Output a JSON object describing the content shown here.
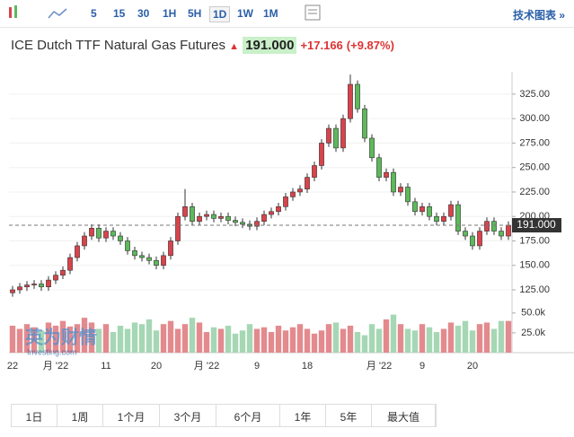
{
  "toolbar": {
    "intervals": [
      "5",
      "15",
      "30",
      "1H",
      "5H",
      "1D",
      "1W",
      "1M"
    ],
    "active": "1D",
    "link": "技术图表 »"
  },
  "header": {
    "title": "ICE Dutch TTF Natural Gas Futures",
    "price": "191.000",
    "change": "+17.166",
    "change_pct": "(+9.87%)"
  },
  "watermark": {
    "brand": "英为财情",
    "site": "Investing.com"
  },
  "ranges": [
    "1日",
    "1周",
    "1个月",
    "3个月",
    "6个月",
    "1年",
    "5年",
    "最大值"
  ],
  "chart_data": {
    "type": "candlestick",
    "categories": [
      "22",
      null,
      null,
      null,
      null,
      null,
      "月 '22",
      null,
      null,
      null,
      null,
      null,
      null,
      "11",
      null,
      null,
      null,
      null,
      null,
      null,
      "20",
      null,
      null,
      null,
      null,
      null,
      null,
      "月 '22",
      null,
      null,
      null,
      null,
      null,
      null,
      "9",
      null,
      null,
      null,
      null,
      null,
      null,
      "18",
      null,
      null,
      null,
      null,
      null,
      null,
      null,
      null,
      null,
      "月 '22",
      null,
      null,
      null,
      null,
      null,
      "9",
      null,
      null,
      null,
      null,
      null,
      null,
      "20",
      null,
      null,
      null,
      null,
      null
    ],
    "open": [
      122,
      125,
      128,
      130,
      131,
      128,
      135,
      140,
      145,
      158,
      170,
      180,
      188,
      178,
      185,
      180,
      175,
      165,
      160,
      158,
      155,
      150,
      160,
      175,
      200,
      210,
      195,
      200,
      202,
      198,
      200,
      196,
      194,
      192,
      190,
      195,
      202,
      205,
      210,
      220,
      225,
      228,
      240,
      252,
      275,
      290,
      270,
      300,
      335,
      310,
      280,
      260,
      240,
      245,
      225,
      230,
      215,
      205,
      210,
      200,
      195,
      200,
      212,
      185,
      180,
      170,
      185,
      195,
      185,
      180
    ],
    "high": [
      129,
      132,
      134,
      135,
      135,
      139,
      144,
      149,
      162,
      174,
      184,
      192,
      192,
      189,
      189,
      184,
      179,
      169,
      164,
      162,
      159,
      164,
      179,
      204,
      228,
      214,
      204,
      206,
      206,
      204,
      204,
      200,
      198,
      196,
      199,
      206,
      209,
      214,
      224,
      229,
      232,
      244,
      256,
      279,
      294,
      294,
      304,
      345,
      339,
      314,
      284,
      264,
      249,
      249,
      234,
      234,
      219,
      214,
      214,
      204,
      204,
      216,
      216,
      189,
      184,
      189,
      199,
      199,
      189,
      195
    ],
    "low": [
      118,
      121,
      124,
      126,
      124,
      124,
      131,
      136,
      141,
      154,
      166,
      176,
      174,
      174,
      176,
      171,
      161,
      156,
      154,
      151,
      146,
      146,
      156,
      171,
      196,
      191,
      191,
      196,
      194,
      194,
      192,
      190,
      188,
      186,
      186,
      191,
      198,
      201,
      206,
      216,
      221,
      224,
      236,
      248,
      271,
      266,
      266,
      296,
      306,
      276,
      256,
      236,
      236,
      221,
      221,
      211,
      201,
      201,
      196,
      191,
      191,
      196,
      181,
      176,
      166,
      166,
      181,
      181,
      176,
      176
    ],
    "close": [
      125,
      128,
      130,
      131,
      128,
      135,
      140,
      145,
      158,
      170,
      180,
      188,
      178,
      185,
      180,
      175,
      165,
      160,
      158,
      155,
      150,
      160,
      175,
      200,
      210,
      195,
      200,
      202,
      198,
      200,
      196,
      194,
      192,
      190,
      195,
      202,
      205,
      210,
      220,
      225,
      228,
      240,
      252,
      275,
      290,
      270,
      300,
      335,
      310,
      280,
      260,
      240,
      245,
      225,
      230,
      215,
      205,
      210,
      200,
      195,
      200,
      212,
      185,
      180,
      170,
      185,
      195,
      185,
      180,
      191
    ],
    "volume": [
      34,
      30,
      36,
      32,
      28,
      38,
      34,
      40,
      33,
      36,
      44,
      38,
      30,
      36,
      26,
      34,
      30,
      38,
      36,
      42,
      28,
      36,
      40,
      30,
      36,
      44,
      38,
      26,
      32,
      30,
      34,
      24,
      28,
      36,
      30,
      32,
      26,
      34,
      28,
      32,
      36,
      30,
      24,
      28,
      36,
      38,
      30,
      34,
      26,
      22,
      36,
      30,
      42,
      48,
      36,
      30,
      28,
      36,
      32,
      26,
      30,
      38,
      34,
      40,
      28,
      36,
      38,
      30,
      40,
      40
    ],
    "up_color": "#d9434b",
    "down_color": "#5db95b",
    "up_volume_color": "#e38a8e",
    "down_volume_color": "#a6d7b4",
    "ylim": [
      114,
      346
    ],
    "yticks": [
      {
        "value": 125,
        "label": "125.00"
      },
      {
        "value": 150,
        "label": "150.00"
      },
      {
        "value": 175,
        "label": "175.00"
      },
      {
        "value": 200,
        "label": "200.00"
      },
      {
        "value": 225,
        "label": "225.00"
      },
      {
        "value": 250,
        "label": "250.00"
      },
      {
        "value": 275,
        "label": "275.00"
      },
      {
        "value": 300,
        "label": "300.00"
      },
      {
        "value": 325,
        "label": "325.00"
      }
    ],
    "volume_ylim": [
      0,
      60
    ],
    "volume_yticks": [
      {
        "value": 25,
        "label": "25.0k"
      },
      {
        "value": 50,
        "label": "50.0k"
      }
    ],
    "last_price": {
      "value": 191,
      "label": "191.000"
    }
  }
}
